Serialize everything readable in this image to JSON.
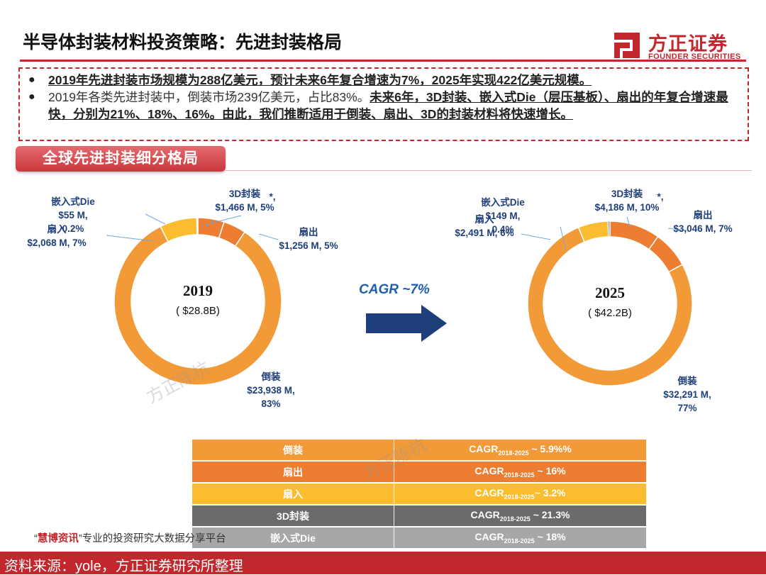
{
  "header": {
    "title": "半导体封装材料投资策略：先进封装格局",
    "logo_cn": "方正证券",
    "logo_en": "FOUNDER SECURITIES"
  },
  "bullets": [
    {
      "strong": "2019年先进封装市场规模为288亿美元，预计未来6年复合增速为7%，2025年实现422亿美元规模。",
      "normal": ""
    },
    {
      "normal": "2019年各类先进封装中，倒装市场239亿美元，占比83%。",
      "strong": "未来6年，3D封装、嵌入式Die（层压基板）、扇出的年复合增速最快，分别为21%、18%、16%。由此，我们推断适用于倒装、扇出、3D的封装材料将快速增长。"
    }
  ],
  "section_banner": "全球先进封装细分格局",
  "cagr_arrow_label": "CAGR ~7%",
  "chart_data": [
    {
      "type": "pie",
      "donut": true,
      "center_year": "2019",
      "center_value": "( $28.8B)",
      "categories": [
        "3D封装",
        "扇出",
        "倒装",
        "扇入",
        "嵌入式Die"
      ],
      "values": [
        1466,
        1256,
        23938,
        2068,
        55
      ],
      "shares": [
        5,
        5,
        83,
        7,
        0.2
      ],
      "labels": [
        {
          "name": "3D封装",
          "line2": "$1,466 M, 5%"
        },
        {
          "name": "扇出",
          "line2": "$1,256 M, 5%"
        },
        {
          "name": "倒装",
          "line2": "$23,938 M,",
          "line3": "83%"
        },
        {
          "name": "扇入",
          "line2": "$2,068 M, 7%"
        },
        {
          "name": "嵌入式Die",
          "line2": "$55 M,",
          "line3": "0.2%"
        }
      ],
      "star": "*,",
      "colors": [
        "#ef7b3e",
        "#ef7b3e",
        "#f29a38",
        "#f7bc33",
        "#1f3d7a"
      ]
    },
    {
      "type": "pie",
      "donut": true,
      "center_year": "2025",
      "center_value": "( $42.2B)",
      "categories": [
        "3D封装",
        "扇出",
        "倒装",
        "扇入",
        "嵌入式Die"
      ],
      "values": [
        4186,
        3046,
        32291,
        2491,
        149
      ],
      "shares": [
        10,
        7,
        77,
        6,
        0.4
      ],
      "labels": [
        {
          "name": "3D封装",
          "line2": "$4,186 M, 10%"
        },
        {
          "name": "扇出",
          "line2": "$3,046 M, 7%"
        },
        {
          "name": "倒装",
          "line2": "$32,291 M,",
          "line3": "77%"
        },
        {
          "name": "扇入",
          "line2": "$2,491 M, 6%"
        },
        {
          "name": "嵌入式Die",
          "line2": "$149 M,",
          "line3": "0.4%"
        }
      ],
      "star": "*,",
      "colors": [
        "#ef7b3e",
        "#ef7b3e",
        "#f29a38",
        "#f7bc33",
        "#1f3d7a"
      ]
    }
  ],
  "growth_table": [
    {
      "category": "倒装",
      "cagr_main": "CAGR",
      "cagr_sub": "2018-2025",
      "cagr_value": " ~ 5.9%%",
      "color": "#f29a38"
    },
    {
      "category": "扇出",
      "cagr_main": "CAGR",
      "cagr_sub": "2018-2025",
      "cagr_value": " ~ 16%",
      "color": "#ed7d31"
    },
    {
      "category": "扇入",
      "cagr_main": "CAGR",
      "cagr_sub": "2018-2025",
      "cagr_value": "~ 3.2%",
      "color": "#fbbd2f"
    },
    {
      "category": "3D封装",
      "cagr_main": "CAGR",
      "cagr_sub": "2018-2025",
      "cagr_value": " ~ 21.3%",
      "color": "#6b6b6b"
    },
    {
      "category": "嵌入式Die",
      "cagr_main": "CAGR",
      "cagr_sub": "2018-2025",
      "cagr_value": " ~ 18%",
      "color": "#a7a7a7"
    }
  ],
  "ad_text": {
    "open": "“",
    "highlight": "慧博资讯",
    "close": "”",
    "rest": "专业的投资研究大数据分享平台"
  },
  "footer_source": "资料来源：yole，方正证券研究所整理",
  "watermark": "方正陈杭"
}
